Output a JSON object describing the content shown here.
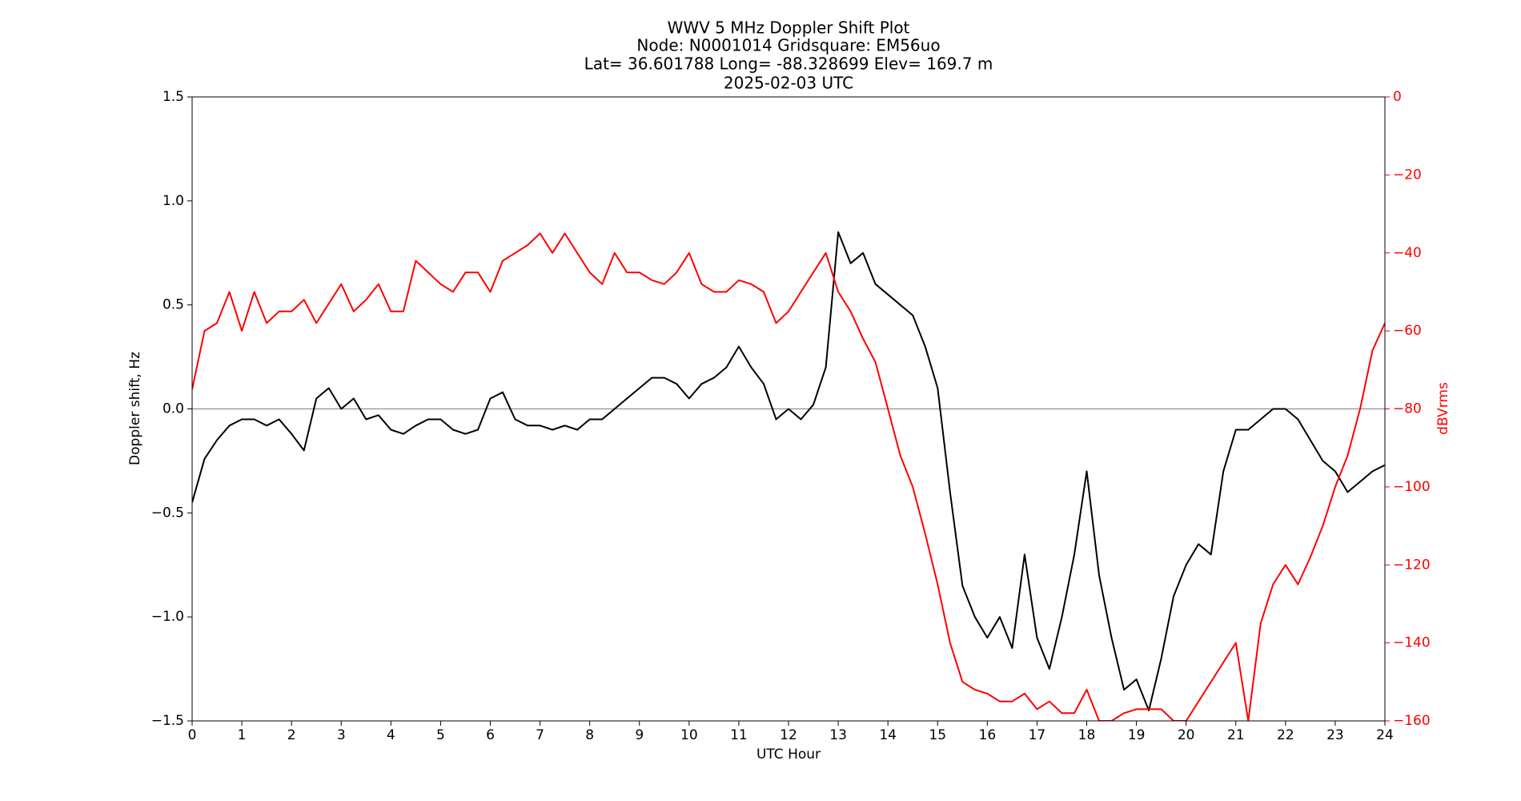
{
  "chart_data": {
    "type": "line",
    "title": [
      "WWV 5 MHz Doppler Shift Plot",
      "Node:  N0001014     Gridsquare:  EM56uo",
      "Lat= 36.601788    Long= -88.328699    Elev= 169.7 m",
      "2025-02-03  UTC"
    ],
    "xlabel": "UTC Hour",
    "ylabel": "Doppler shift, Hz",
    "y2label": "dBVrms",
    "xlim": [
      0,
      24
    ],
    "xticks": [
      0,
      1,
      2,
      3,
      4,
      5,
      6,
      7,
      8,
      9,
      10,
      11,
      12,
      13,
      14,
      15,
      16,
      17,
      18,
      19,
      20,
      21,
      22,
      23,
      24
    ],
    "ylim": [
      -1.5,
      1.5
    ],
    "yticks": [
      {
        "value": -1.5,
        "label": "−1.5"
      },
      {
        "value": -1.0,
        "label": "−1.0"
      },
      {
        "value": -0.5,
        "label": "−0.5"
      },
      {
        "value": 0,
        "label": "0.0"
      },
      {
        "value": 0.5,
        "label": "0.5"
      },
      {
        "value": 1.0,
        "label": "1.0"
      },
      {
        "value": 1.5,
        "label": "1.5"
      }
    ],
    "y2lim": [
      -160,
      0
    ],
    "y2ticks": [
      {
        "value": -160,
        "label": "−160"
      },
      {
        "value": -140,
        "label": "−140"
      },
      {
        "value": -120,
        "label": "−120"
      },
      {
        "value": -100,
        "label": "−100"
      },
      {
        "value": -80,
        "label": "−80"
      },
      {
        "value": -60,
        "label": "−60"
      },
      {
        "value": -40,
        "label": "−40"
      },
      {
        "value": -20,
        "label": "−20"
      },
      0
    ],
    "y2color": "#ff0000",
    "hline": 0,
    "x": [
      0,
      0.25,
      0.5,
      0.75,
      1,
      1.25,
      1.5,
      1.75,
      2,
      2.25,
      2.5,
      2.75,
      3,
      3.25,
      3.5,
      3.75,
      4,
      4.25,
      4.5,
      4.75,
      5,
      5.25,
      5.5,
      5.75,
      6,
      6.25,
      6.5,
      6.75,
      7,
      7.25,
      7.5,
      7.75,
      8,
      8.25,
      8.5,
      8.75,
      9,
      9.25,
      9.5,
      9.75,
      10,
      10.25,
      10.5,
      10.75,
      11,
      11.25,
      11.5,
      11.75,
      12,
      12.25,
      12.5,
      12.75,
      13,
      13.25,
      13.5,
      13.75,
      14,
      14.25,
      14.5,
      14.75,
      15,
      15.25,
      15.5,
      15.75,
      16,
      16.25,
      16.5,
      16.75,
      17,
      17.25,
      17.5,
      17.75,
      18,
      18.25,
      18.5,
      18.75,
      19,
      19.25,
      19.5,
      19.75,
      20,
      20.25,
      20.5,
      20.75,
      21,
      21.25,
      21.5,
      21.75,
      22,
      22.25,
      22.5,
      22.75,
      23,
      23.25,
      23.5,
      23.75,
      24
    ],
    "series": [
      {
        "color": "#000000",
        "values": [
          -0.45,
          -0.24,
          -0.15,
          -0.08,
          -0.05,
          -0.05,
          -0.08,
          -0.05,
          -0.12,
          -0.2,
          0.05,
          0.1,
          0.0,
          0.05,
          -0.05,
          -0.03,
          -0.1,
          -0.12,
          -0.08,
          -0.05,
          -0.05,
          -0.1,
          -0.12,
          -0.1,
          0.05,
          0.08,
          -0.05,
          -0.08,
          -0.08,
          -0.1,
          -0.08,
          -0.1,
          -0.05,
          -0.05,
          0.0,
          0.05,
          0.1,
          0.15,
          0.15,
          0.12,
          0.05,
          0.12,
          0.15,
          0.2,
          0.3,
          0.2,
          0.12,
          -0.05,
          0.0,
          -0.05,
          0.02,
          0.2,
          0.85,
          0.7,
          0.75,
          0.6,
          0.55,
          0.5,
          0.45,
          0.3,
          0.1,
          -0.4,
          -0.85,
          -1.0,
          -1.1,
          -1.0,
          -1.15,
          -0.7,
          -1.1,
          -1.25,
          -1.0,
          -0.7,
          -0.3,
          -0.8,
          -1.1,
          -1.35,
          -1.3,
          -1.45,
          -1.2,
          -0.9,
          -0.75,
          -0.65,
          -0.7,
          -0.3,
          -0.1,
          -0.1,
          -0.05,
          0.0,
          0.0,
          -0.05,
          -0.15,
          -0.25,
          -0.3,
          -0.4,
          -0.35,
          -0.3,
          -0.27
        ]
      },
      {
        "color": "#ff0000",
        "axis": "y2",
        "values": [
          -75,
          -60,
          -58,
          -50,
          -60,
          -50,
          -58,
          -55,
          -55,
          -52,
          -58,
          -53,
          -48,
          -55,
          -52,
          -48,
          -55,
          -55,
          -42,
          -45,
          -48,
          -50,
          -45,
          -45,
          -50,
          -42,
          -40,
          -38,
          -35,
          -40,
          -35,
          -40,
          -45,
          -48,
          -40,
          -45,
          -45,
          -47,
          -48,
          -45,
          -40,
          -48,
          -50,
          -50,
          -47,
          -48,
          -50,
          -58,
          -55,
          -50,
          -45,
          -40,
          -50,
          -55,
          -62,
          -68,
          -80,
          -92,
          -100,
          -112,
          -125,
          -140,
          -150,
          -152,
          -153,
          -155,
          -155,
          -153,
          -157,
          -155,
          -158,
          -158,
          -152,
          -160,
          -160,
          -158,
          -157,
          -157,
          -157,
          -160,
          -160,
          -155,
          -150,
          -145,
          -140,
          -160,
          -135,
          -125,
          -120,
          -125,
          -118,
          -110,
          -100,
          -92,
          -80,
          -65,
          -58
        ]
      }
    ]
  }
}
